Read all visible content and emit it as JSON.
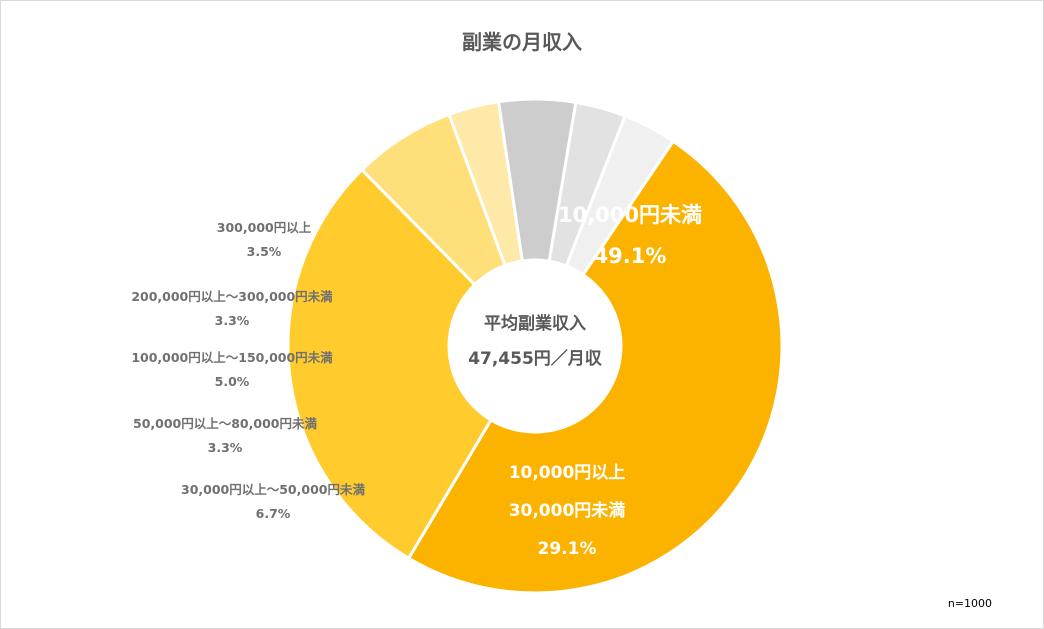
{
  "title": "副業の月収入",
  "note": "n=1000",
  "center": {
    "line1": "平均副業収入",
    "line2": "47,455円／月収"
  },
  "chart_data": {
    "type": "pie",
    "variant": "donut",
    "title": "副業の月収入",
    "slices": [
      {
        "label": "10,000円未満",
        "value": 49.1,
        "display": "49.1%",
        "color": "#FBB300"
      },
      {
        "label": "10,000円以上 30,000円未満",
        "value": 29.1,
        "display": "29.1%",
        "color": "#FFCB2D"
      },
      {
        "label": "30,000円以上～50,000円未満",
        "value": 6.7,
        "display": "6.7%",
        "color": "#FFDF7A"
      },
      {
        "label": "50,000円以上～80,000円未満",
        "value": 3.3,
        "display": "3.3%",
        "color": "#FFE9A8"
      },
      {
        "label": "100,000円以上～150,000円未満",
        "value": 5.0,
        "display": "5.0%",
        "color": "#CDCDCD"
      },
      {
        "label": "200,000円以上～300,000円未満",
        "value": 3.3,
        "display": "3.3%",
        "color": "#E2E2E2"
      },
      {
        "label": "300,000円以上",
        "value": 3.5,
        "display": "3.5%",
        "color": "#F0F0F0"
      }
    ]
  }
}
